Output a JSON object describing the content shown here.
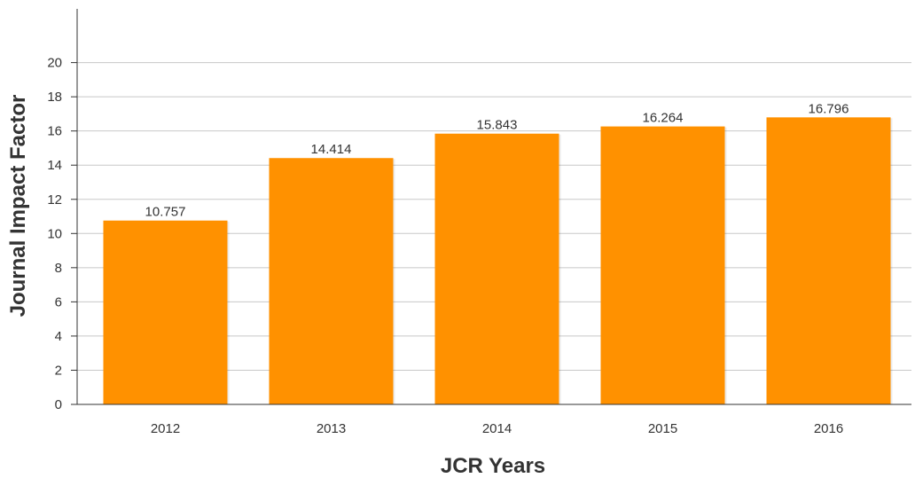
{
  "chart_data": {
    "type": "bar",
    "xlabel": "JCR Years",
    "ylabel": "Journal Impact Factor",
    "categories": [
      "2012",
      "2013",
      "2014",
      "2015",
      "2016"
    ],
    "values": [
      10.757,
      14.414,
      15.843,
      16.264,
      16.796
    ],
    "data_labels": [
      "10.757",
      "14.414",
      "15.843",
      "16.264",
      "16.796"
    ],
    "y_ticks": [
      "0",
      "2",
      "4",
      "6",
      "8",
      "10",
      "12",
      "14",
      "16",
      "18",
      "20"
    ],
    "ylim": [
      0,
      23
    ],
    "grid": true,
    "legend": "none",
    "colors": {
      "bar": "#ff9100",
      "grid": "#c8c8c8",
      "axis": "#333333",
      "text": "#333333"
    }
  }
}
